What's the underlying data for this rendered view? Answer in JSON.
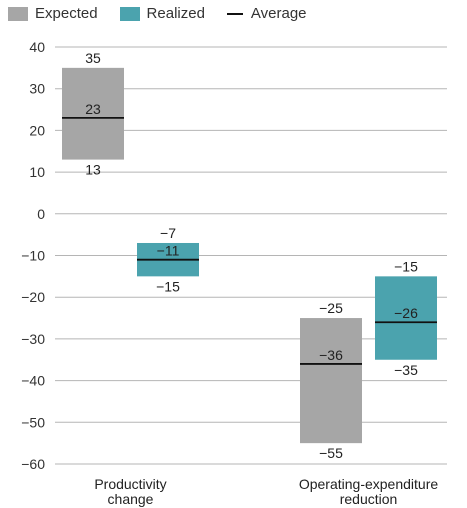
{
  "chart_data": {
    "type": "bar",
    "subtype": "floating-range",
    "legend": {
      "placement": "top-left",
      "entries": [
        {
          "name": "Expected",
          "kind": "swatch",
          "color": "#a6a6a6"
        },
        {
          "name": "Realized",
          "kind": "swatch",
          "color": "#4ba3ae"
        },
        {
          "name": "Average",
          "kind": "line",
          "color": "#111111"
        }
      ]
    },
    "ylim": [
      -60,
      40
    ],
    "yticks": [
      40,
      30,
      20,
      10,
      0,
      -10,
      -20,
      -30,
      -40,
      -50,
      -60
    ],
    "ytick_labels": [
      "40",
      "30",
      "20",
      "10",
      "0",
      "−10",
      "−20",
      "−30",
      "−40",
      "−50",
      "−60"
    ],
    "grid": true,
    "categories": [
      {
        "label_lines": [
          "Productivity",
          "change"
        ]
      },
      {
        "label_lines": [
          "Operating-expenditure",
          "reduction"
        ]
      }
    ],
    "series": [
      {
        "name": "Expected",
        "color": "#a6a6a6",
        "values": [
          {
            "category": 0,
            "high": 35,
            "avg": 23,
            "low": 13,
            "high_label": "35",
            "avg_label": "23",
            "low_label": "13"
          },
          {
            "category": 1,
            "high": -25,
            "avg": -36,
            "low": -55,
            "high_label": "−25",
            "avg_label": "−36",
            "low_label": "−55"
          }
        ]
      },
      {
        "name": "Realized",
        "color": "#4ba3ae",
        "values": [
          {
            "category": 0,
            "high": -7,
            "avg": -11,
            "low": -15,
            "high_label": "−7",
            "avg_label": "−11",
            "low_label": "−15"
          },
          {
            "category": 1,
            "high": -15,
            "avg": -26,
            "low": -35,
            "high_label": "−15",
            "avg_label": "−26",
            "low_label": "−35"
          }
        ]
      }
    ]
  }
}
